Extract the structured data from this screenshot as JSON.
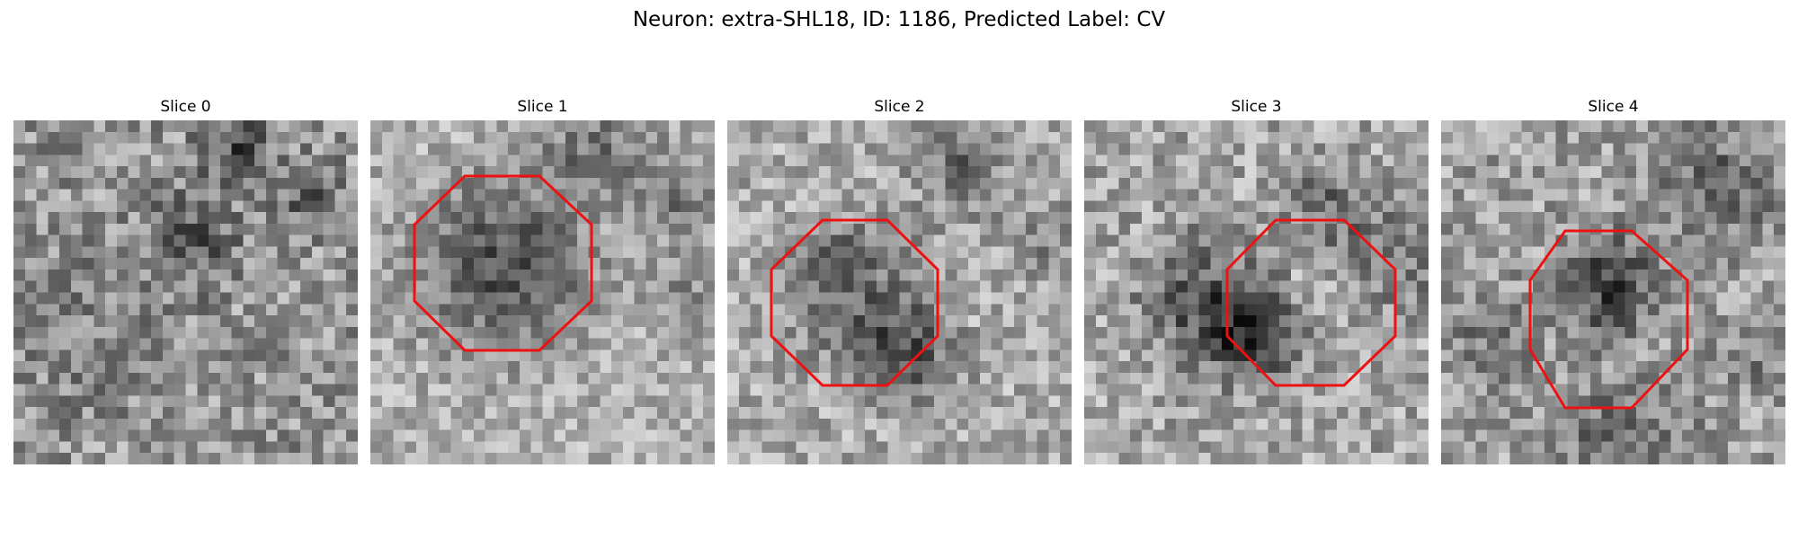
{
  "figure": {
    "title": "Neuron: extra-SHL18, ID: 1186, Predicted Label: CV"
  },
  "colors": {
    "roi_outline": "#ee1111",
    "colormap": "gray"
  },
  "slices": [
    {
      "title": "Slice 0",
      "roi_visible": false
    },
    {
      "title": "Slice 1",
      "roi_visible": true,
      "roi_shape": "octagon"
    },
    {
      "title": "Slice 2",
      "roi_visible": true,
      "roi_shape": "octagon"
    },
    {
      "title": "Slice 3",
      "roi_visible": true,
      "roi_shape": "octagon"
    },
    {
      "title": "Slice 4",
      "roi_visible": true,
      "roi_shape": "octagon"
    }
  ]
}
